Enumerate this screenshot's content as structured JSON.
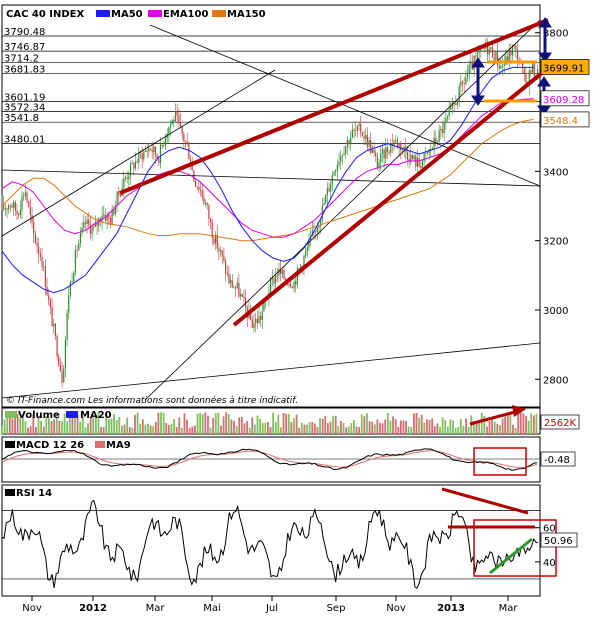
{
  "chart_data": [
    {
      "type": "line",
      "title": "CAC 40 INDEX",
      "legend": [
        {
          "name": "MA50",
          "color": "#1a1aff"
        },
        {
          "name": "EMA100",
          "color": "#e600e6"
        },
        {
          "name": "MA150",
          "color": "#e07a10"
        }
      ],
      "price_level_labels": [
        "3790.48",
        "3746.87",
        "3714.2",
        "3681.83",
        "3601.19",
        "3572.34",
        "3541.8",
        "3480.01"
      ],
      "price_levels": [
        3790.48,
        3746.87,
        3714.2,
        3681.83,
        3601.19,
        3572.34,
        3541.8,
        3480.01
      ],
      "y_ticks": [
        {
          "v": 3800,
          "t": "3800"
        },
        {
          "v": 3400,
          "t": "3400"
        },
        {
          "v": 3200,
          "t": "3200"
        },
        {
          "v": 3000,
          "t": "3000"
        },
        {
          "v": 2800,
          "t": "2800"
        }
      ],
      "ylim": [
        2720,
        3880
      ],
      "value_boxes": [
        {
          "value": 3699.91,
          "text": "3699.91",
          "fill": "#ffaa00",
          "text_color": "#000000"
        },
        {
          "value": 3609.28,
          "text": "3609.28",
          "fill": "#ffffff",
          "text_color": "#e600e6"
        },
        {
          "value": 3548.4,
          "text": "3548.4",
          "fill": "#ffffff",
          "text_color": "#e07a10"
        }
      ],
      "close_path": [
        [
          0,
          3290
        ],
        [
          8,
          3310
        ],
        [
          15,
          3280
        ],
        [
          22,
          3350
        ],
        [
          30,
          3220
        ],
        [
          38,
          3150
        ],
        [
          45,
          3020
        ],
        [
          52,
          2900
        ],
        [
          58,
          2800
        ],
        [
          64,
          3050
        ],
        [
          72,
          3180
        ],
        [
          80,
          3250
        ],
        [
          88,
          3230
        ],
        [
          96,
          3280
        ],
        [
          104,
          3260
        ],
        [
          110,
          3320
        ],
        [
          118,
          3380
        ],
        [
          126,
          3420
        ],
        [
          134,
          3450
        ],
        [
          142,
          3470
        ],
        [
          150,
          3440
        ],
        [
          158,
          3520
        ],
        [
          166,
          3560
        ],
        [
          172,
          3510
        ],
        [
          178,
          3470
        ],
        [
          184,
          3380
        ],
        [
          190,
          3350
        ],
        [
          196,
          3300
        ],
        [
          202,
          3220
        ],
        [
          210,
          3160
        ],
        [
          218,
          3080
        ],
        [
          226,
          3060
        ],
        [
          234,
          3000
        ],
        [
          240,
          2960
        ],
        [
          248,
          2980
        ],
        [
          256,
          3060
        ],
        [
          264,
          3110
        ],
        [
          272,
          3090
        ],
        [
          280,
          3080
        ],
        [
          288,
          3140
        ],
        [
          296,
          3200
        ],
        [
          304,
          3260
        ],
        [
          312,
          3340
        ],
        [
          320,
          3420
        ],
        [
          328,
          3470
        ],
        [
          336,
          3510
        ],
        [
          344,
          3520
        ],
        [
          352,
          3480
        ],
        [
          360,
          3420
        ],
        [
          368,
          3460
        ],
        [
          376,
          3490
        ],
        [
          384,
          3470
        ],
        [
          392,
          3440
        ],
        [
          400,
          3420
        ],
        [
          408,
          3450
        ],
        [
          416,
          3490
        ],
        [
          424,
          3530
        ],
        [
          432,
          3580
        ],
        [
          440,
          3640
        ],
        [
          448,
          3690
        ],
        [
          456,
          3730
        ],
        [
          464,
          3760
        ],
        [
          472,
          3740
        ],
        [
          478,
          3700
        ],
        [
          484,
          3720
        ],
        [
          490,
          3760
        ],
        [
          496,
          3720
        ],
        [
          502,
          3650
        ],
        [
          508,
          3700
        ],
        [
          514,
          3680
        ]
      ],
      "ma50_path": [
        [
          0,
          3170
        ],
        [
          10,
          3130
        ],
        [
          20,
          3100
        ],
        [
          30,
          3080
        ],
        [
          40,
          3060
        ],
        [
          50,
          3050
        ],
        [
          60,
          3060
        ],
        [
          70,
          3080
        ],
        [
          80,
          3100
        ],
        [
          90,
          3140
        ],
        [
          100,
          3180
        ],
        [
          110,
          3220
        ],
        [
          120,
          3280
        ],
        [
          130,
          3340
        ],
        [
          140,
          3400
        ],
        [
          150,
          3440
        ],
        [
          160,
          3460
        ],
        [
          170,
          3470
        ],
        [
          180,
          3460
        ],
        [
          190,
          3440
        ],
        [
          200,
          3400
        ],
        [
          210,
          3350
        ],
        [
          220,
          3290
        ],
        [
          230,
          3240
        ],
        [
          240,
          3200
        ],
        [
          250,
          3170
        ],
        [
          260,
          3150
        ],
        [
          270,
          3140
        ],
        [
          280,
          3150
        ],
        [
          290,
          3180
        ],
        [
          300,
          3230
        ],
        [
          310,
          3290
        ],
        [
          320,
          3350
        ],
        [
          330,
          3400
        ],
        [
          340,
          3440
        ],
        [
          350,
          3460
        ],
        [
          360,
          3470
        ],
        [
          370,
          3480
        ],
        [
          380,
          3470
        ],
        [
          390,
          3460
        ],
        [
          400,
          3450
        ],
        [
          410,
          3460
        ],
        [
          420,
          3470
        ],
        [
          430,
          3490
        ],
        [
          440,
          3530
        ],
        [
          450,
          3580
        ],
        [
          460,
          3630
        ],
        [
          470,
          3670
        ],
        [
          480,
          3690
        ],
        [
          490,
          3700
        ],
        [
          500,
          3700
        ],
        [
          510,
          3700
        ]
      ],
      "ema100_path": [
        [
          0,
          3350
        ],
        [
          10,
          3370
        ],
        [
          20,
          3360
        ],
        [
          30,
          3340
        ],
        [
          40,
          3300
        ],
        [
          50,
          3260
        ],
        [
          60,
          3230
        ],
        [
          70,
          3220
        ],
        [
          80,
          3230
        ],
        [
          90,
          3250
        ],
        [
          100,
          3270
        ],
        [
          110,
          3300
        ],
        [
          120,
          3330
        ],
        [
          130,
          3350
        ],
        [
          140,
          3370
        ],
        [
          150,
          3390
        ],
        [
          160,
          3400
        ],
        [
          170,
          3400
        ],
        [
          180,
          3390
        ],
        [
          190,
          3370
        ],
        [
          200,
          3340
        ],
        [
          210,
          3310
        ],
        [
          220,
          3280
        ],
        [
          230,
          3250
        ],
        [
          240,
          3230
        ],
        [
          250,
          3220
        ],
        [
          260,
          3210
        ],
        [
          270,
          3210
        ],
        [
          280,
          3220
        ],
        [
          290,
          3240
        ],
        [
          300,
          3260
        ],
        [
          310,
          3290
        ],
        [
          320,
          3320
        ],
        [
          330,
          3350
        ],
        [
          340,
          3380
        ],
        [
          350,
          3400
        ],
        [
          360,
          3410
        ],
        [
          370,
          3420
        ],
        [
          380,
          3420
        ],
        [
          390,
          3430
        ],
        [
          400,
          3430
        ],
        [
          410,
          3440
        ],
        [
          420,
          3450
        ],
        [
          430,
          3470
        ],
        [
          440,
          3500
        ],
        [
          450,
          3530
        ],
        [
          460,
          3560
        ],
        [
          470,
          3580
        ],
        [
          480,
          3600
        ],
        [
          490,
          3605
        ],
        [
          500,
          3608
        ],
        [
          510,
          3610
        ]
      ],
      "ma150_path": [
        [
          0,
          3300
        ],
        [
          10,
          3330
        ],
        [
          20,
          3360
        ],
        [
          30,
          3380
        ],
        [
          40,
          3380
        ],
        [
          50,
          3360
        ],
        [
          60,
          3330
        ],
        [
          70,
          3300
        ],
        [
          80,
          3280
        ],
        [
          90,
          3260
        ],
        [
          100,
          3250
        ],
        [
          110,
          3245
        ],
        [
          120,
          3240
        ],
        [
          130,
          3230
        ],
        [
          140,
          3220
        ],
        [
          150,
          3215
        ],
        [
          160,
          3215
        ],
        [
          170,
          3220
        ],
        [
          180,
          3220
        ],
        [
          190,
          3220
        ],
        [
          200,
          3215
        ],
        [
          210,
          3210
        ],
        [
          220,
          3205
        ],
        [
          230,
          3200
        ],
        [
          240,
          3200
        ],
        [
          250,
          3205
        ],
        [
          260,
          3210
        ],
        [
          270,
          3215
        ],
        [
          280,
          3220
        ],
        [
          290,
          3230
        ],
        [
          300,
          3240
        ],
        [
          310,
          3250
        ],
        [
          320,
          3260
        ],
        [
          330,
          3270
        ],
        [
          340,
          3280
        ],
        [
          350,
          3290
        ],
        [
          360,
          3300
        ],
        [
          370,
          3310
        ],
        [
          380,
          3320
        ],
        [
          390,
          3330
        ],
        [
          400,
          3340
        ],
        [
          410,
          3350
        ],
        [
          420,
          3370
        ],
        [
          430,
          3390
        ],
        [
          440,
          3420
        ],
        [
          450,
          3450
        ],
        [
          460,
          3480
        ],
        [
          470,
          3500
        ],
        [
          480,
          3520
        ],
        [
          490,
          3535
        ],
        [
          500,
          3545
        ],
        [
          510,
          3550
        ]
      ],
      "annotation": "© IT-Finance.com  Les informations sont données à titre indicatif."
    },
    {
      "type": "bar",
      "title": "Volume",
      "legend": [
        {
          "name": "Volume",
          "color": "#7fbf5f"
        },
        {
          "name": "MA20",
          "color": "#1a1aff"
        }
      ],
      "value_box": {
        "text": "2562K",
        "fill": "#ffffff",
        "text_color": "#cc0000"
      }
    },
    {
      "type": "line",
      "title": "MACD 12 26",
      "legend": [
        {
          "name": "MACD 12 26",
          "color": "#000000"
        },
        {
          "name": "MA9",
          "color": "#e07070"
        }
      ],
      "value_box": {
        "text": "-0.48",
        "fill": "#ffffff",
        "text_color": "#000000"
      }
    },
    {
      "type": "line",
      "title": "RSI 14",
      "y_ticks": [
        {
          "v": 60,
          "t": "60"
        },
        {
          "v": 40,
          "t": "40"
        }
      ],
      "ylim": [
        20,
        85
      ],
      "value_box": {
        "value": 50.96,
        "text": "50.96",
        "fill": "#ffffff",
        "text_color": "#000000"
      },
      "x_ticks": [
        "Nov",
        "2012",
        "Mar",
        "Mai",
        "Jul",
        "Sep",
        "Nov",
        "2013",
        "Mar"
      ],
      "x_tick_bold": [
        false,
        true,
        false,
        false,
        false,
        false,
        false,
        true,
        false
      ]
    }
  ]
}
